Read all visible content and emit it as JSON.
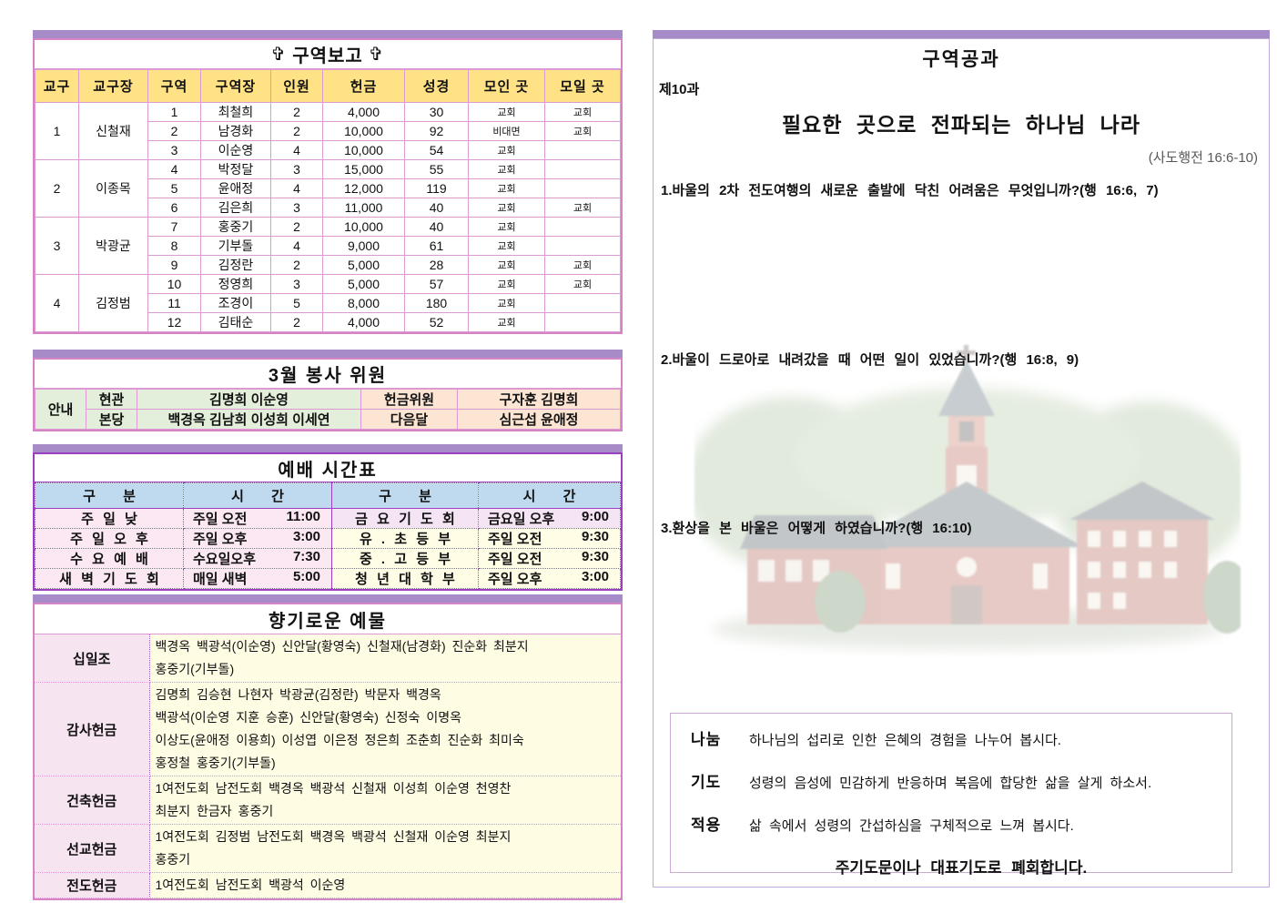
{
  "colors": {
    "section_bar": "#A78BC9",
    "pink_border": "#DD9AD2",
    "purple_border": "#9C3FC0",
    "header_yellow": "#FFE285",
    "committee_green": "#E3EFDA",
    "committee_peach": "#FCE5D2",
    "schedule_header_blue": "#BFD9EE",
    "schedule_pink": "#FBE8F3",
    "schedule_lavender": "#F4E4F4",
    "schedule_yellow": "#FFFDE5",
    "offer_label_bg": "#F6E4F1",
    "offer_content_bg": "#FEFCE3"
  },
  "report": {
    "cross_icon": "✞",
    "title": "구역보고",
    "columns": [
      "교구",
      "교구장",
      "구역",
      "구역장",
      "인원",
      "헌금",
      "성경",
      "모인 곳",
      "모일 곳"
    ],
    "groups": [
      {
        "district": "1",
        "leader": "신철재",
        "rows": [
          [
            "1",
            "최철희",
            "2",
            "4,000",
            "30",
            "교회",
            "교회"
          ],
          [
            "2",
            "남경화",
            "2",
            "10,000",
            "92",
            "비대면",
            "교회"
          ],
          [
            "3",
            "이순영",
            "4",
            "10,000",
            "54",
            "교회",
            ""
          ]
        ]
      },
      {
        "district": "2",
        "leader": "이종목",
        "rows": [
          [
            "4",
            "박정달",
            "3",
            "15,000",
            "55",
            "교회",
            ""
          ],
          [
            "5",
            "윤애정",
            "4",
            "12,000",
            "119",
            "교회",
            ""
          ],
          [
            "6",
            "김은희",
            "3",
            "11,000",
            "40",
            "교회",
            "교회"
          ]
        ]
      },
      {
        "district": "3",
        "leader": "박광균",
        "rows": [
          [
            "7",
            "홍중기",
            "2",
            "10,000",
            "40",
            "교회",
            ""
          ],
          [
            "8",
            "기부돌",
            "4",
            "9,000",
            "61",
            "교회",
            ""
          ],
          [
            "9",
            "김정란",
            "2",
            "5,000",
            "28",
            "교회",
            "교회"
          ]
        ]
      },
      {
        "district": "4",
        "leader": "김정범",
        "rows": [
          [
            "10",
            "정영희",
            "3",
            "5,000",
            "57",
            "교회",
            "교회"
          ],
          [
            "11",
            "조경이",
            "5",
            "8,000",
            "180",
            "교회",
            ""
          ],
          [
            "12",
            "김태순",
            "2",
            "4,000",
            "52",
            "교회",
            ""
          ]
        ]
      }
    ]
  },
  "committee": {
    "title": "3월 봉사 위원",
    "left_header": "안내",
    "rows": [
      {
        "place": "현관",
        "names": "김명희 이순영",
        "right_label": "헌금위원",
        "right_names": "구자훈 김명희"
      },
      {
        "place": "본당",
        "names": "백경옥 김남희 이성희 이세연",
        "right_label": "다음달",
        "right_names": "심근섭 윤애정"
      }
    ]
  },
  "schedule": {
    "title": "예배 시간표",
    "headers": [
      "구 분",
      "시 간",
      "구 분",
      "시 간"
    ],
    "rows": [
      {
        "left": "주 일 낮",
        "left_time_label": "주일 오전",
        "left_time": "11:00",
        "right": "금 요 기 도 회",
        "right_time_label": "금요일 오후",
        "right_time": "9:00",
        "right_style": "lv"
      },
      {
        "left": "주 일 오 후",
        "left_time_label": "주일 오후",
        "left_time": "3:00",
        "right": "유 . 초 등 부",
        "right_time_label": "주일 오전",
        "right_time": "9:30",
        "right_style": "yl"
      },
      {
        "left": "수 요 예 배",
        "left_time_label": "수요일오후",
        "left_time": "7:30",
        "right": "중 . 고 등 부",
        "right_time_label": "주일 오전",
        "right_time": "9:30",
        "right_style": "yl"
      },
      {
        "left": "새 벽 기 도 회",
        "left_time_label": "매일 새벽",
        "left_time": "5:00",
        "right": "청 년 대 학 부",
        "right_time_label": "주일 오후",
        "right_time": "3:00",
        "right_style": "yl"
      }
    ]
  },
  "offerings": {
    "title": "향기로운 예물",
    "rows": [
      {
        "label": "십일조",
        "lines": [
          "백경옥 백광석(이순영) 신안달(황영숙) 신철재(남경화) 진순화 최분지",
          "홍중기(기부돌)"
        ]
      },
      {
        "label": "감사헌금",
        "lines": [
          "김명희 김승현 나현자 박광균(김정란) 박문자 백경옥",
          "백광석(이순영 지훈 승훈) 신안달(황영숙) 신정숙 이명옥",
          "이상도(윤애정 이용희) 이성엽 이은정 정은희 조춘희 진순화 최미숙",
          "홍정철 홍중기(기부돌)"
        ]
      },
      {
        "label": "건축헌금",
        "lines": [
          "1여전도회 남전도회 백경옥 백광석 신철재 이성희 이순영 천영찬",
          "최분지 한금자 홍중기"
        ]
      },
      {
        "label": "선교헌금",
        "lines": [
          "1여전도회 김정범 남전도회 백경옥 백광석 신철재 이순영 최분지",
          "홍중기"
        ]
      },
      {
        "label": "전도헌금",
        "lines": [
          "1여전도회 남전도회 백광석 이순영"
        ]
      }
    ]
  },
  "lesson": {
    "title": "구역공과",
    "lesson_no": "제10과",
    "main_title": "필요한 곳으로 전파되는 하나님 나라",
    "scripture": "(사도행전 16:6-10)",
    "questions": [
      "1.바울의 2차 전도여행의 새로운 출발에 닥친 어려움은 무엇입니까?(행 16:6, 7)",
      "2.바울이 드로아로 내려갔을 때 어떤 일이 있었습니까?(행 16:8, 9)",
      "3.환상을 본 바울은 어떻게 하였습니까?(행 16:10)"
    ],
    "discussion": [
      {
        "label": "나눔",
        "text": "하나님의 섭리로 인한 은혜의 경험을 나누어 봅시다."
      },
      {
        "label": "기도",
        "text": "성령의 음성에 민감하게 반응하며 복음에 합당한 삶을 살게 하소서."
      },
      {
        "label": "적용",
        "text": "삶 속에서 성령의 간섭하심을 구체적으로 느껴 봅시다."
      }
    ],
    "closing": "주기도문이나 대표기도로 폐회합니다."
  }
}
